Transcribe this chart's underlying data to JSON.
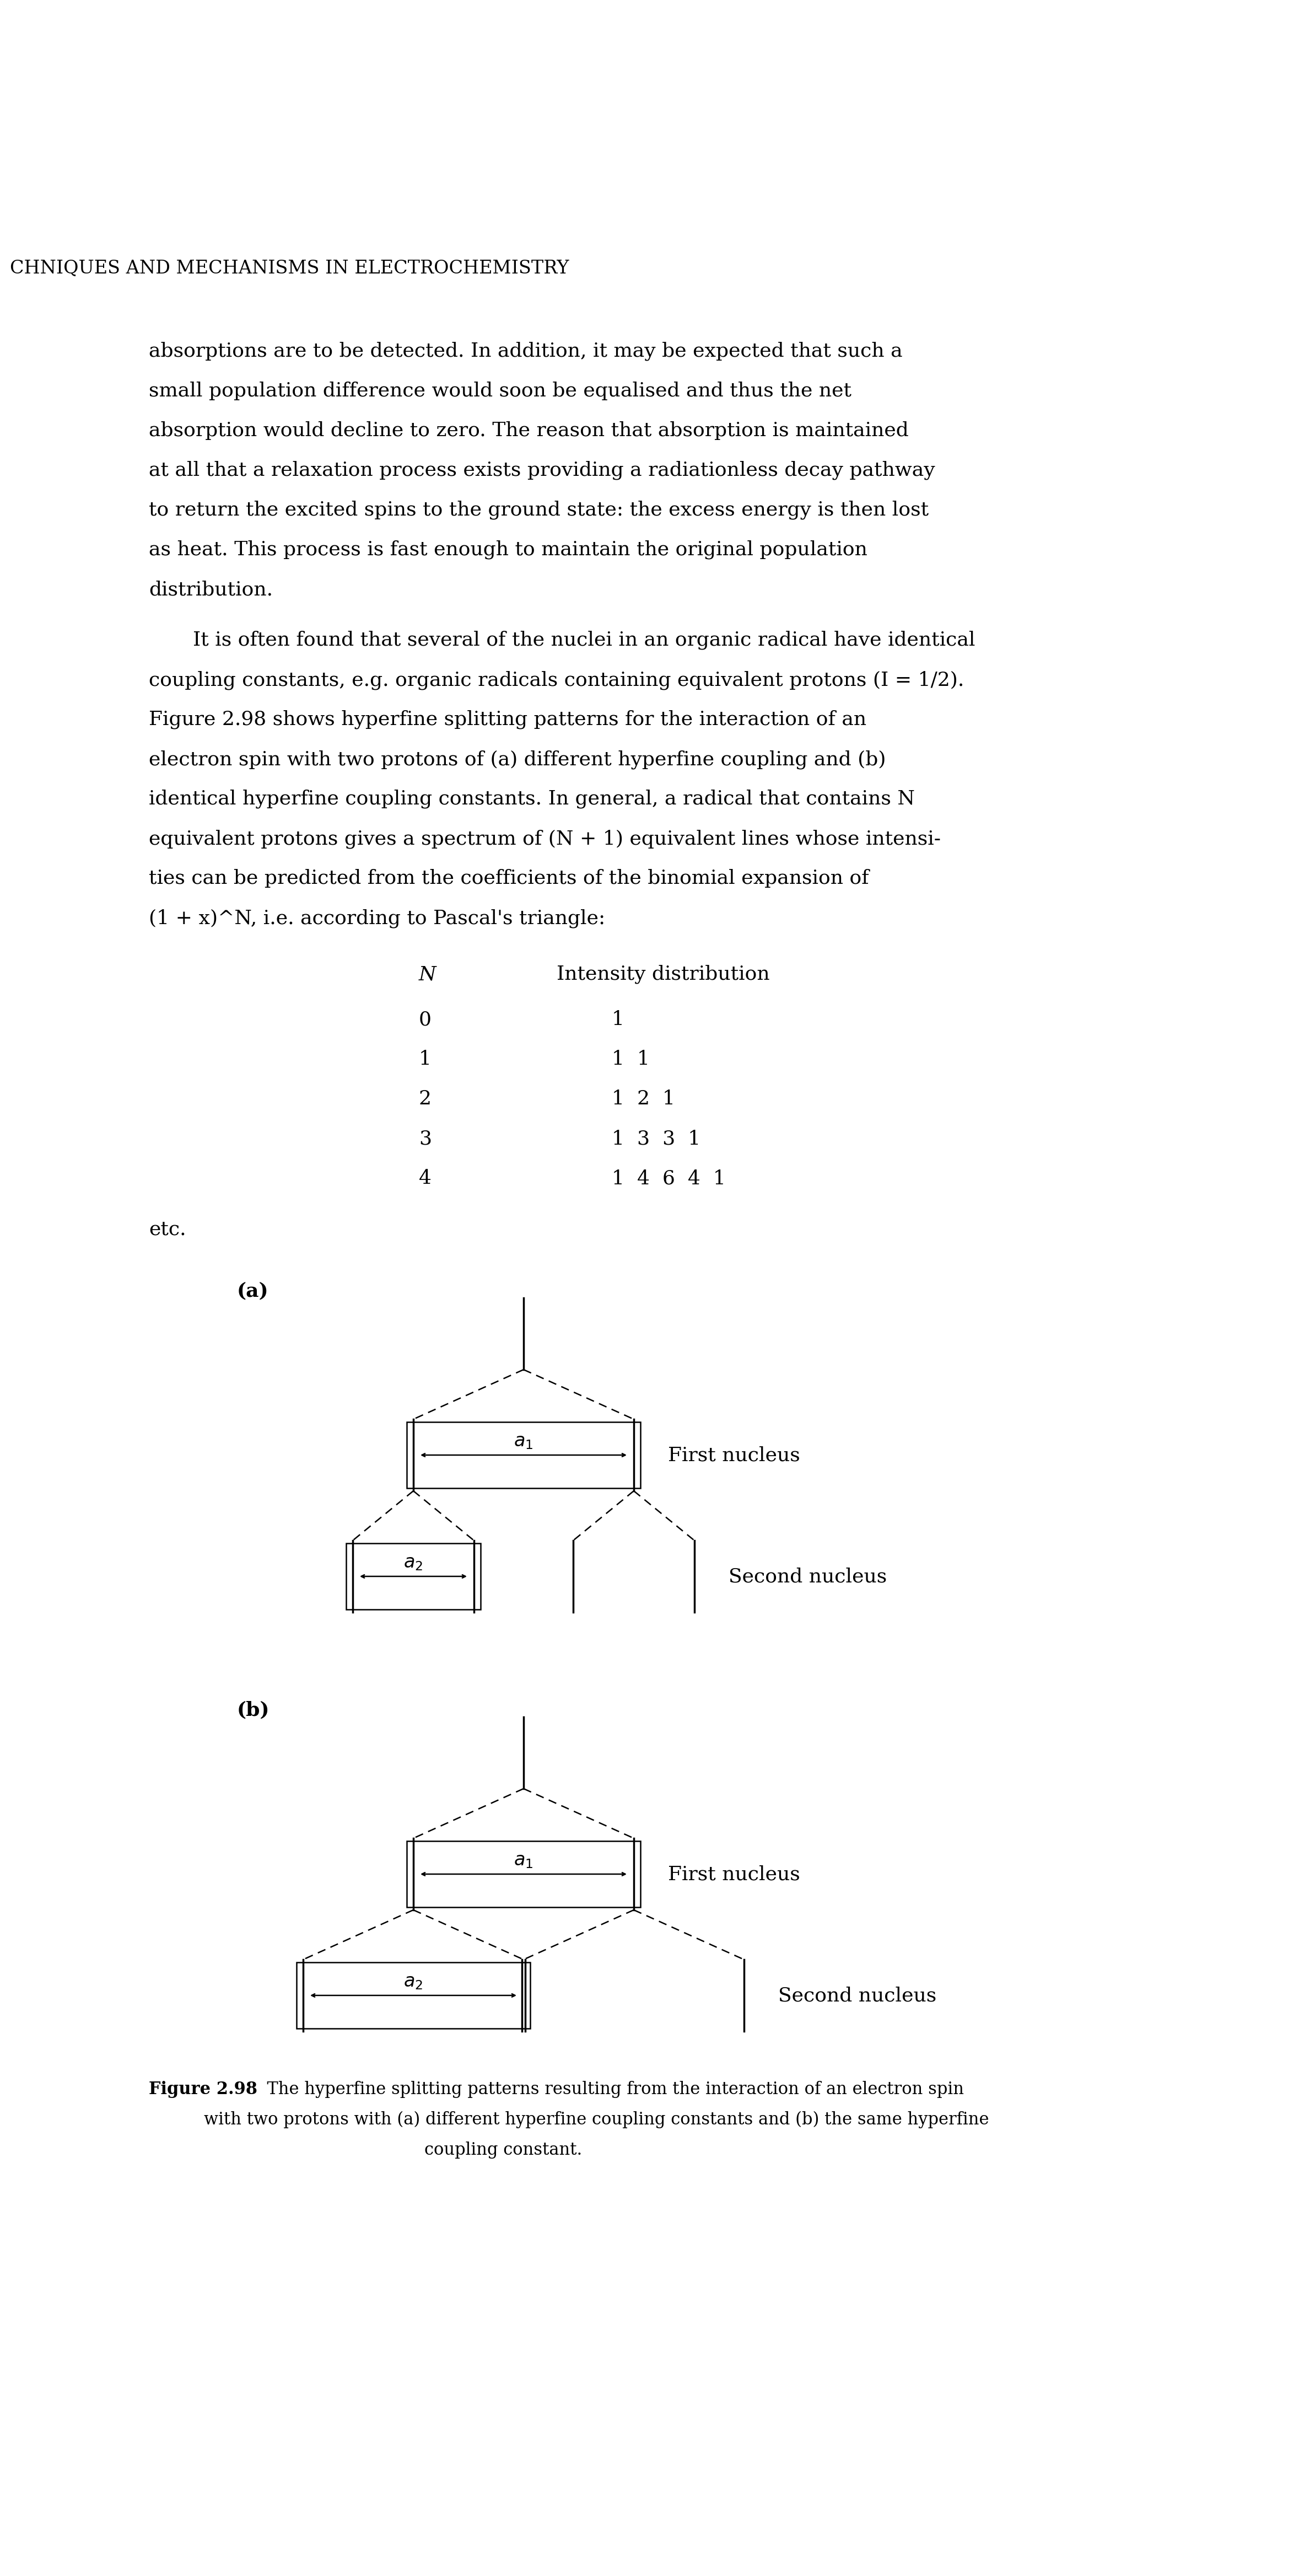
{
  "bg_color": "#ffffff",
  "header_text": "CHNIQUES AND MECHANISMS IN ELECTROCHEMISTRY",
  "para1_lines": [
    "absorptions are to be detected. In addition, it may be expected that such a",
    "small population difference would soon be equalised and thus the net",
    "absorption would decline to zero. The reason that absorption is maintained",
    "at all that a relaxation process exists providing a radiationless decay pathway",
    "to return the excited spins to the ground state: the excess energy is then lost",
    "as heat. This process is fast enough to maintain the original population",
    "distribution."
  ],
  "para2_lines": [
    "It is often found that several of the nuclei in an organic radical have identical",
    "coupling constants, e.g. organic radicals containing equivalent protons (I = 1/2).",
    "Figure 2.98 shows hyperfine splitting patterns for the interaction of an",
    "electron spin with two protons of (a) different hyperfine coupling and (b)",
    "identical hyperfine coupling constants. In general, a radical that contains N",
    "equivalent protons gives a spectrum of (N + 1) equivalent lines whose intensi-",
    "ties can be predicted from the coefficients of the binomial expansion of",
    "(1 + x)^N, i.e. according to Pascal's triangle:"
  ],
  "pascal_rows": [
    [
      "0",
      "1"
    ],
    [
      "1",
      "1  1"
    ],
    [
      "2",
      "1  2  1"
    ],
    [
      "3",
      "1  3  3  1"
    ],
    [
      "4",
      "1  4  6  4  1"
    ]
  ],
  "label_a": "(a)",
  "label_b": "(b)",
  "first_nucleus": "First nucleus",
  "second_nucleus": "Second nucleus",
  "caption_bold": "Figure 2.98",
  "caption_rest_line1": "  The hyperfine splitting patterns resulting from the interaction of an electron spin",
  "caption_line2": "with two protons with (a) different hyperfine coupling constants and (b) the same hyperfine",
  "caption_line3": "coupling constant."
}
